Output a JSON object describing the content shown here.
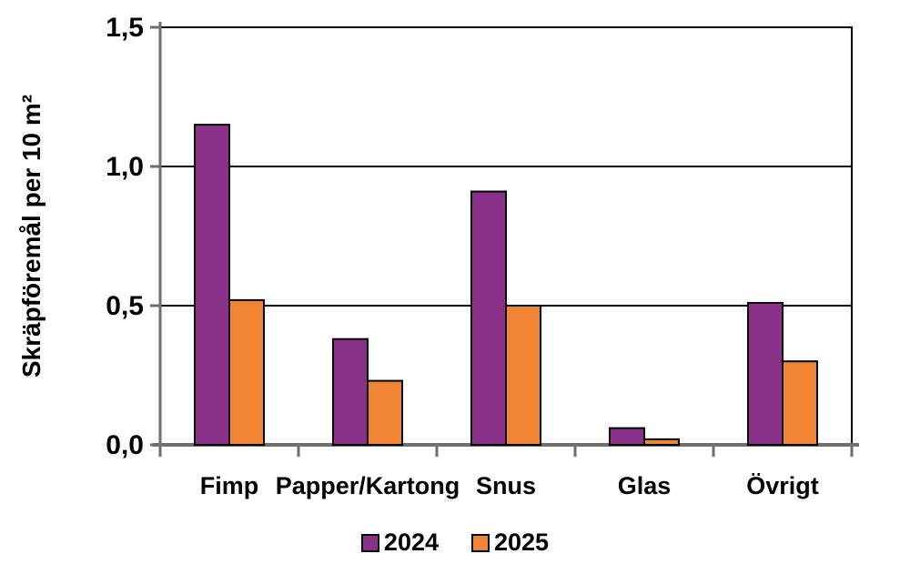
{
  "chart_data": {
    "type": "bar",
    "title": "",
    "ylabel": "Skräpföremål per 10 m²",
    "xlabel": "",
    "categories": [
      "Fimp",
      "Papper/Kartong",
      "Snus",
      "Glas",
      "Övrigt"
    ],
    "series": [
      {
        "name": "2024",
        "color": "#8A3189",
        "values": [
          1.15,
          0.38,
          0.91,
          0.06,
          0.51
        ]
      },
      {
        "name": "2025",
        "color": "#EF8435",
        "values": [
          0.52,
          0.23,
          0.5,
          0.02,
          0.3
        ]
      }
    ],
    "ylim": [
      0,
      1.5
    ],
    "ytick_step": 0.5,
    "ytick_labels": [
      "0,0",
      "0,5",
      "1,0",
      "1,5"
    ],
    "grid": "horizontal",
    "legend_position": "bottom",
    "colors": {
      "gridline": "#000000",
      "axis": "#6E6E6E",
      "bar_outline": "#000000",
      "text": "#000000",
      "background": "#FFFFFF"
    }
  }
}
